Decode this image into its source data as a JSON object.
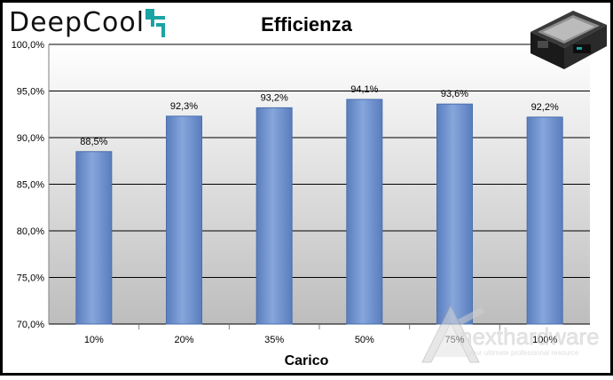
{
  "brand": {
    "name": "DeepCool"
  },
  "chart_data": {
    "type": "bar",
    "title": "Efficienza",
    "xlabel": "Carico",
    "ylabel": "",
    "categories": [
      "10%",
      "20%",
      "35%",
      "50%",
      "75%",
      "100%"
    ],
    "values": [
      88.5,
      92.3,
      93.2,
      94.1,
      93.6,
      92.2
    ],
    "data_labels": [
      "88,5%",
      "92,3%",
      "93,2%",
      "94,1%",
      "93,6%",
      "92,2%"
    ],
    "ylim": [
      70,
      100
    ],
    "yticks": [
      70,
      75,
      80,
      85,
      90,
      95,
      100
    ],
    "ytick_labels": [
      "70,0%",
      "75,0%",
      "80,0%",
      "85,0%",
      "90,0%",
      "95,0%",
      "100,0%"
    ],
    "grid": true,
    "legend": "none",
    "colors": {
      "bar": "#6f93cf",
      "bar_dark": "#4a6fae",
      "plot_bg": "#bfbfbf"
    }
  }
}
